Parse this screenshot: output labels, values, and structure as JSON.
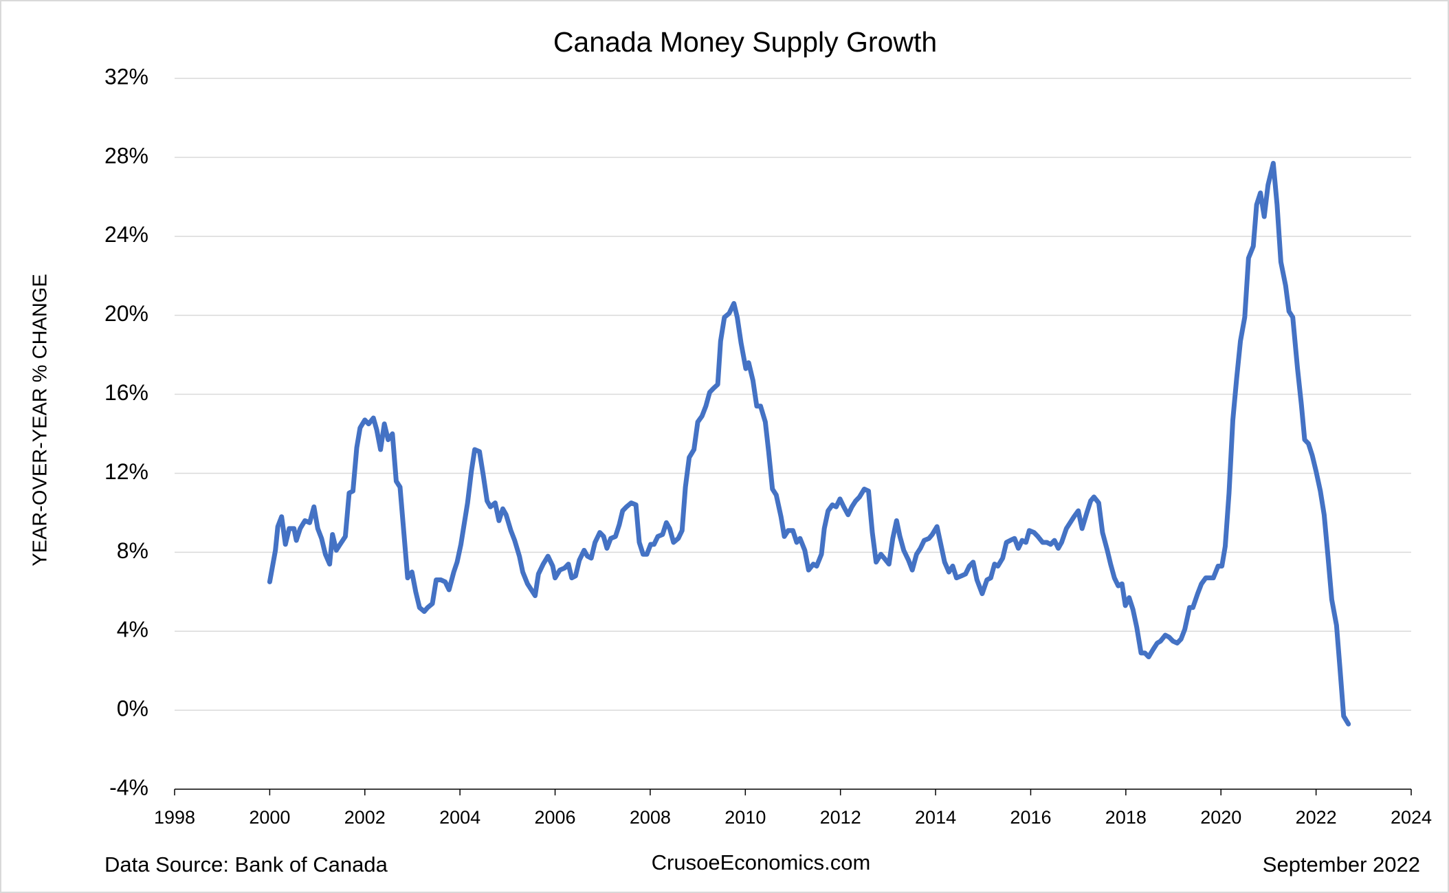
{
  "chart_data": {
    "type": "line",
    "title": "Canada Money Supply Growth",
    "y_label": "YEAR-OVER-YEAR % CHANGE",
    "footer_left": "Data Source: Bank of Canada",
    "footer_center": "CrusoeEconomics.com",
    "footer_right": "September 2022",
    "xlim": [
      1998,
      2024
    ],
    "xticks": [
      1998,
      2000,
      2002,
      2004,
      2006,
      2008,
      2010,
      2012,
      2014,
      2016,
      2018,
      2020,
      2022,
      2024
    ],
    "ylim": [
      -4,
      32
    ],
    "yticks": [
      {
        "value": -4,
        "label": "-4%"
      },
      {
        "value": 0,
        "label": "0%"
      },
      {
        "value": 4,
        "label": "4%"
      },
      {
        "value": 8,
        "label": "8%"
      },
      {
        "value": 12,
        "label": "12%"
      },
      {
        "value": 16,
        "label": "16%"
      },
      {
        "value": 20,
        "label": "20%"
      },
      {
        "value": 24,
        "label": "24%"
      },
      {
        "value": 28,
        "label": "28%"
      },
      {
        "value": 32,
        "label": "32%"
      }
    ],
    "grid": true,
    "x": [
      2000.0,
      2000.12,
      2000.17,
      2000.25,
      2000.33,
      2000.41,
      2000.51,
      2000.56,
      2000.64,
      2000.74,
      2000.84,
      2000.93,
      2001.01,
      2001.09,
      2001.17,
      2001.26,
      2001.32,
      2001.4,
      2001.48,
      2001.59,
      2001.67,
      2001.75,
      2001.83,
      2001.9,
      2002.0,
      2002.08,
      2002.18,
      2002.25,
      2002.33,
      2002.41,
      2002.49,
      2002.58,
      2002.66,
      2002.74,
      2002.82,
      2002.9,
      2002.99,
      2003.07,
      2003.15,
      2003.25,
      2003.32,
      2003.42,
      2003.5,
      2003.6,
      2003.69,
      2003.77,
      2003.87,
      2003.94,
      2004.02,
      2004.08,
      2004.16,
      2004.24,
      2004.31,
      2004.41,
      2004.49,
      2004.57,
      2004.64,
      2004.74,
      2004.82,
      2004.9,
      2004.97,
      2005.07,
      2005.15,
      2005.25,
      2005.32,
      2005.42,
      2005.5,
      2005.58,
      2005.65,
      2005.75,
      2005.85,
      2005.95,
      2006.0,
      2006.1,
      2006.2,
      2006.28,
      2006.35,
      2006.43,
      2006.51,
      2006.61,
      2006.68,
      2006.76,
      2006.84,
      2006.94,
      2007.02,
      2007.09,
      2007.17,
      2007.27,
      2007.35,
      2007.42,
      2007.5,
      2007.6,
      2007.7,
      2007.77,
      2007.85,
      2007.93,
      2008.01,
      2008.08,
      2008.16,
      2008.26,
      2008.34,
      2008.41,
      2008.49,
      2008.59,
      2008.67,
      2008.74,
      2008.82,
      2008.92,
      2009.0,
      2009.09,
      2009.17,
      2009.25,
      2009.33,
      2009.42,
      2009.48,
      2009.56,
      2009.66,
      2009.76,
      2009.83,
      2009.91,
      2010.01,
      2010.07,
      2010.16,
      2010.24,
      2010.32,
      2010.42,
      2010.49,
      2010.57,
      2010.65,
      2010.75,
      2010.82,
      2010.9,
      2011.0,
      2011.08,
      2011.15,
      2011.25,
      2011.33,
      2011.43,
      2011.5,
      2011.6,
      2011.66,
      2011.74,
      2011.83,
      2011.91,
      2011.99,
      2012.07,
      2012.16,
      2012.24,
      2012.32,
      2012.4,
      2012.5,
      2012.59,
      2012.67,
      2012.75,
      2012.85,
      2012.92,
      2013.02,
      2013.1,
      2013.18,
      2013.25,
      2013.33,
      2013.43,
      2013.51,
      2013.6,
      2013.68,
      2013.76,
      2013.86,
      2013.93,
      2014.03,
      2014.11,
      2014.19,
      2014.28,
      2014.36,
      2014.44,
      2014.54,
      2014.63,
      2014.71,
      2014.79,
      2014.87,
      2014.98,
      2015.08,
      2015.16,
      2015.24,
      2015.31,
      2015.41,
      2015.49,
      2015.57,
      2015.66,
      2015.74,
      2015.82,
      2015.9,
      2015.97,
      2016.07,
      2016.15,
      2016.25,
      2016.34,
      2016.42,
      2016.5,
      2016.58,
      2016.65,
      2016.75,
      2016.83,
      2016.91,
      2017.0,
      2017.08,
      2017.18,
      2017.26,
      2017.33,
      2017.43,
      2017.51,
      2017.61,
      2017.68,
      2017.76,
      2017.84,
      2017.92,
      2017.99,
      2018.07,
      2018.15,
      2018.23,
      2018.32,
      2018.4,
      2018.48,
      2018.58,
      2018.66,
      2018.73,
      2018.83,
      2018.91,
      2018.99,
      2019.08,
      2019.16,
      2019.24,
      2019.34,
      2019.41,
      2019.51,
      2019.59,
      2019.68,
      2019.76,
      2019.84,
      2019.94,
      2020.02,
      2020.09,
      2020.17,
      2020.25,
      2020.33,
      2020.41,
      2020.5,
      2020.58,
      2020.68,
      2020.75,
      2020.83,
      2020.91,
      2020.99,
      2021.1,
      2021.18,
      2021.26,
      2021.36,
      2021.43,
      2021.51,
      2021.61,
      2021.69,
      2021.76,
      2021.84,
      2021.92,
      2022.0,
      2022.09,
      2022.17,
      2022.25,
      2022.33,
      2022.43,
      2022.5,
      2022.58,
      2022.68
    ],
    "series": [
      {
        "name": "Canada Money Supply Growth",
        "color": "#4472c4",
        "values": [
          6.5,
          8.1,
          9.3,
          9.8,
          8.4,
          9.2,
          9.2,
          8.6,
          9.2,
          9.6,
          9.5,
          10.3,
          9.2,
          8.7,
          7.9,
          7.4,
          8.9,
          8.1,
          8.4,
          8.8,
          11.0,
          11.1,
          13.3,
          14.3,
          14.7,
          14.5,
          14.8,
          14.2,
          13.2,
          14.5,
          13.7,
          14.0,
          11.6,
          11.3,
          9.0,
          6.7,
          7.0,
          6.0,
          5.2,
          5.0,
          5.2,
          5.4,
          6.6,
          6.6,
          6.5,
          6.1,
          7.0,
          7.5,
          8.4,
          9.3,
          10.5,
          12.1,
          13.2,
          13.1,
          11.9,
          10.6,
          10.3,
          10.5,
          9.6,
          10.2,
          9.9,
          9.1,
          8.6,
          7.8,
          7.0,
          6.4,
          6.1,
          5.8,
          6.9,
          7.4,
          7.8,
          7.3,
          6.7,
          7.1,
          7.2,
          7.4,
          6.7,
          6.8,
          7.6,
          8.1,
          7.8,
          7.7,
          8.5,
          9.0,
          8.8,
          8.2,
          8.7,
          8.8,
          9.4,
          10.1,
          10.3,
          10.5,
          10.4,
          8.5,
          7.9,
          7.9,
          8.4,
          8.4,
          8.8,
          8.9,
          9.5,
          9.2,
          8.5,
          8.7,
          9.1,
          11.3,
          12.8,
          13.2,
          14.6,
          14.9,
          15.4,
          16.1,
          16.3,
          16.5,
          18.7,
          19.9,
          20.1,
          20.6,
          19.9,
          18.6,
          17.3,
          17.6,
          16.7,
          15.4,
          15.4,
          14.6,
          13.1,
          11.2,
          10.9,
          9.8,
          8.8,
          9.1,
          9.1,
          8.5,
          8.7,
          8.1,
          7.1,
          7.4,
          7.3,
          7.9,
          9.2,
          10.1,
          10.4,
          10.3,
          10.7,
          10.3,
          9.9,
          10.3,
          10.6,
          10.8,
          11.2,
          11.1,
          9.0,
          7.5,
          7.9,
          7.7,
          7.4,
          8.7,
          9.6,
          8.8,
          8.1,
          7.6,
          7.1,
          7.9,
          8.2,
          8.6,
          8.7,
          8.9,
          9.3,
          8.4,
          7.5,
          7.0,
          7.3,
          6.7,
          6.8,
          6.9,
          7.3,
          7.5,
          6.6,
          5.9,
          6.6,
          6.7,
          7.4,
          7.3,
          7.7,
          8.5,
          8.6,
          8.7,
          8.2,
          8.6,
          8.5,
          9.1,
          9.0,
          8.8,
          8.5,
          8.5,
          8.4,
          8.6,
          8.2,
          8.5,
          9.2,
          9.5,
          9.8,
          10.1,
          9.2,
          10.0,
          10.6,
          10.8,
          10.5,
          9.0,
          8.1,
          7.4,
          6.7,
          6.3,
          6.4,
          5.3,
          5.7,
          5.1,
          4.2,
          2.9,
          2.9,
          2.7,
          3.1,
          3.4,
          3.5,
          3.8,
          3.7,
          3.5,
          3.4,
          3.6,
          4.1,
          5.2,
          5.2,
          5.9,
          6.4,
          6.7,
          6.7,
          6.7,
          7.3,
          7.3,
          8.3,
          11.0,
          14.7,
          16.8,
          18.7,
          19.9,
          22.9,
          23.5,
          25.6,
          26.2,
          25.0,
          26.6,
          27.7,
          25.6,
          22.7,
          21.5,
          20.2,
          19.9,
          17.3,
          15.5,
          13.7,
          13.5,
          12.9,
          12.1,
          11.1,
          9.9,
          7.8,
          5.6,
          4.3,
          2.2,
          -0.3,
          -0.7
        ]
      }
    ]
  }
}
